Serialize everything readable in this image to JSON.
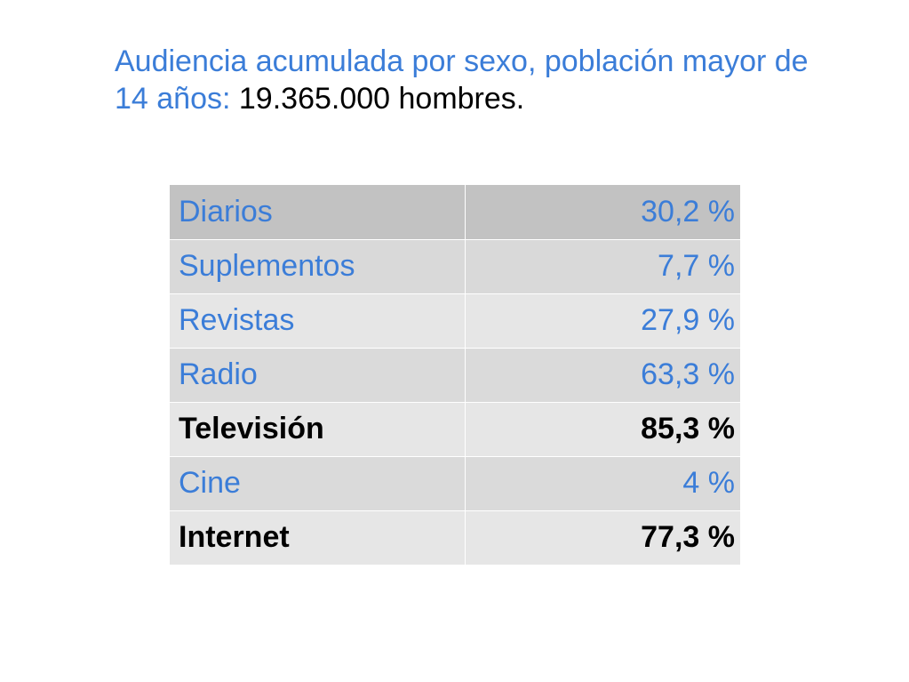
{
  "slide": {
    "title_prefix": "Audiencia acumulada por sexo, población mayor de 14 años: ",
    "title_highlight": "19.365.000 hombres."
  },
  "table": {
    "rows": [
      {
        "label": "Diarios",
        "value": "30,2 %",
        "bold": false
      },
      {
        "label": "Suplementos",
        "value": "7,7 %",
        "bold": false
      },
      {
        "label": "Revistas",
        "value": "27,9 %",
        "bold": false
      },
      {
        "label": "Radio",
        "value": "63,3 %",
        "bold": false
      },
      {
        "label": "Televisión",
        "value": "85,3 %",
        "bold": true
      },
      {
        "label": "Cine",
        "value": "4 %",
        "bold": false
      },
      {
        "label": "Internet",
        "value": "77,3 %",
        "bold": true
      }
    ]
  },
  "colors": {
    "accent_text": "#3b7dd8",
    "emphasis_text": "#000000"
  }
}
